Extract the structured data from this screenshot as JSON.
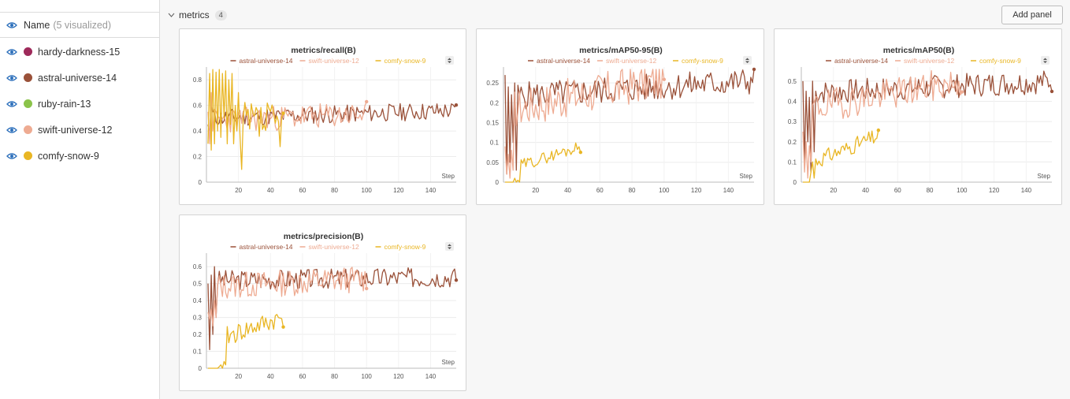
{
  "colors": {
    "hardy_darkness": "#9e2a5a",
    "astral_universe": "#9a5139",
    "ruby_rain": "#8bc34a",
    "swift_universe": "#eeab92",
    "comfy_snow": "#e9b624",
    "eye": "#2c6fbb"
  },
  "sidebar": {
    "header_label": "Name",
    "header_count": "(5 visualized)",
    "runs": [
      {
        "name": "hardy-darkness-15",
        "color": "#9e2a5a"
      },
      {
        "name": "astral-universe-14",
        "color": "#9a5139"
      },
      {
        "name": "ruby-rain-13",
        "color": "#8bc34a"
      },
      {
        "name": "swift-universe-12",
        "color": "#eeab92"
      },
      {
        "name": "comfy-snow-9",
        "color": "#e9b624"
      }
    ]
  },
  "section": {
    "title": "metrics",
    "count": "4",
    "add_panel_label": "Add panel"
  },
  "chart_data": [
    {
      "type": "line",
      "title": "metrics/recall(B)",
      "xlabel": "Step",
      "xlim": [
        0,
        156
      ],
      "ylim": [
        0,
        0.9
      ],
      "xticks": [
        20,
        40,
        60,
        80,
        100,
        120,
        140
      ],
      "yticks": [
        0,
        0.2,
        0.4,
        0.6,
        0.8
      ],
      "yticklabels": [
        "0",
        "0.2",
        "0.4",
        "0.6",
        "0.8"
      ],
      "legend": [
        "astral-universe-14",
        "swift-universe-12",
        "comfy-snow-9"
      ],
      "series": [
        {
          "name": "astral-universe-14",
          "color": "#9a5139",
          "n": 156,
          "base": 0.5,
          "amp": 0.07,
          "seed": 11,
          "start": [
            0.45,
            0.38,
            0.62,
            0.55
          ],
          "rise": 0.06,
          "dot": true
        },
        {
          "name": "swift-universe-12",
          "color": "#eeab92",
          "n": 100,
          "base": 0.48,
          "amp": 0.1,
          "seed": 23,
          "start": [
            0.55,
            0.3,
            0.7,
            0.4
          ],
          "rise": 0.05,
          "dot": true
        },
        {
          "name": "comfy-snow-9",
          "color": "#e9b624",
          "n": 48,
          "base": 0.45,
          "amp": 0.18,
          "seed": 37,
          "start": [
            0.3,
            0.85,
            0.25,
            0.88,
            0.3,
            0.86,
            0.4,
            0.88,
            0.35,
            0.85,
            0.5,
            0.87,
            0.3,
            0.8,
            0.45,
            0.85,
            0.3,
            0.6,
            0.4,
            0.7,
            0.35,
            0.1
          ],
          "rise": 0.0,
          "dot": true
        }
      ]
    },
    {
      "type": "line",
      "title": "metrics/mAP50-95(B)",
      "xlabel": "Step",
      "xlim": [
        0,
        156
      ],
      "ylim": [
        0,
        0.29
      ],
      "xticks": [
        20,
        40,
        60,
        80,
        100,
        120,
        140
      ],
      "yticks": [
        0,
        0.05,
        0.1,
        0.15,
        0.2,
        0.25
      ],
      "yticklabels": [
        "0",
        "0.05",
        "0.1",
        "0.15",
        "0.2",
        "0.25"
      ],
      "legend": [
        "astral-universe-14",
        "swift-universe-12",
        "comfy-snow-9"
      ],
      "series": [
        {
          "name": "astral-universe-14",
          "color": "#9a5139",
          "n": 156,
          "base": 0.215,
          "amp": 0.035,
          "seed": 5,
          "start": [
            0.27,
            0.02,
            0.24,
            0.05,
            0.22,
            0.1,
            0.25,
            0.03
          ],
          "rise": 0.04,
          "dot": true
        },
        {
          "name": "swift-universe-12",
          "color": "#eeab92",
          "n": 100,
          "base": 0.18,
          "amp": 0.05,
          "seed": 17,
          "start": [
            0.09,
            0.02,
            0.07,
            0.01,
            0.08,
            0.03
          ],
          "rise": 0.08,
          "dot": true
        },
        {
          "name": "comfy-snow-9",
          "color": "#e9b624",
          "n": 48,
          "base": 0.03,
          "amp": 0.015,
          "seed": 29,
          "start": [
            0,
            0,
            0,
            0,
            0,
            0,
            0.01,
            0,
            0.005,
            0
          ],
          "rise": 0.06,
          "dot": true
        }
      ]
    },
    {
      "type": "line",
      "title": "metrics/mAP50(B)",
      "xlabel": "Step",
      "xlim": [
        0,
        156
      ],
      "ylim": [
        0,
        0.57
      ],
      "xticks": [
        20,
        40,
        60,
        80,
        100,
        120,
        140
      ],
      "yticks": [
        0,
        0.1,
        0.2,
        0.3,
        0.4,
        0.5
      ],
      "yticklabels": [
        "0",
        "0.1",
        "0.2",
        "0.3",
        "0.4",
        "0.5"
      ],
      "legend": [
        "astral-universe-14",
        "swift-universe-12",
        "comfy-snow-9"
      ],
      "series": [
        {
          "name": "astral-universe-14",
          "color": "#9a5139",
          "n": 156,
          "base": 0.44,
          "amp": 0.06,
          "seed": 7,
          "start": [
            0.5,
            0.1,
            0.45,
            0.2,
            0.42,
            0.05,
            0.5,
            0.15
          ],
          "rise": 0.06,
          "dot": true
        },
        {
          "name": "swift-universe-12",
          "color": "#eeab92",
          "n": 100,
          "base": 0.36,
          "amp": 0.08,
          "seed": 19,
          "start": [
            0.25,
            0.05,
            0.2,
            0.02,
            0.18,
            0.1
          ],
          "rise": 0.14,
          "dot": true
        },
        {
          "name": "comfy-snow-9",
          "color": "#e9b624",
          "n": 48,
          "base": 0.08,
          "amp": 0.04,
          "seed": 31,
          "start": [
            0,
            0,
            0,
            0,
            0,
            0.05,
            0.1,
            0.02
          ],
          "rise": 0.15,
          "dot": true
        }
      ]
    },
    {
      "type": "line",
      "title": "metrics/precision(B)",
      "xlabel": "Step",
      "xlim": [
        0,
        156
      ],
      "ylim": [
        0,
        0.68
      ],
      "xticks": [
        20,
        40,
        60,
        80,
        100,
        120,
        140
      ],
      "yticks": [
        0,
        0.1,
        0.2,
        0.3,
        0.4,
        0.5,
        0.6
      ],
      "yticklabels": [
        "0",
        "0.1",
        "0.2",
        "0.3",
        "0.4",
        "0.5",
        "0.6"
      ],
      "legend": [
        "astral-universe-14",
        "swift-universe-12",
        "comfy-snow-9"
      ],
      "series": [
        {
          "name": "astral-universe-14",
          "color": "#9a5139",
          "n": 156,
          "base": 0.52,
          "amp": 0.06,
          "seed": 3,
          "start": [
            0.5,
            0.11,
            0.55,
            0.2,
            0.6,
            0.3
          ],
          "rise": 0.02,
          "dot": true
        },
        {
          "name": "swift-universe-12",
          "color": "#eeab92",
          "n": 100,
          "base": 0.48,
          "amp": 0.08,
          "seed": 13,
          "start": [
            0.33,
            0.29,
            0.35,
            0.25,
            0.4,
            0.3
          ],
          "rise": 0.05,
          "dot": true
        },
        {
          "name": "comfy-snow-9",
          "color": "#e9b624",
          "n": 48,
          "base": 0.15,
          "amp": 0.06,
          "seed": 41,
          "start": [
            0,
            0,
            0,
            0,
            0,
            0,
            0,
            0.01,
            0.02,
            0,
            0.04,
            0.02
          ],
          "rise": 0.15,
          "dot": true
        }
      ]
    }
  ]
}
